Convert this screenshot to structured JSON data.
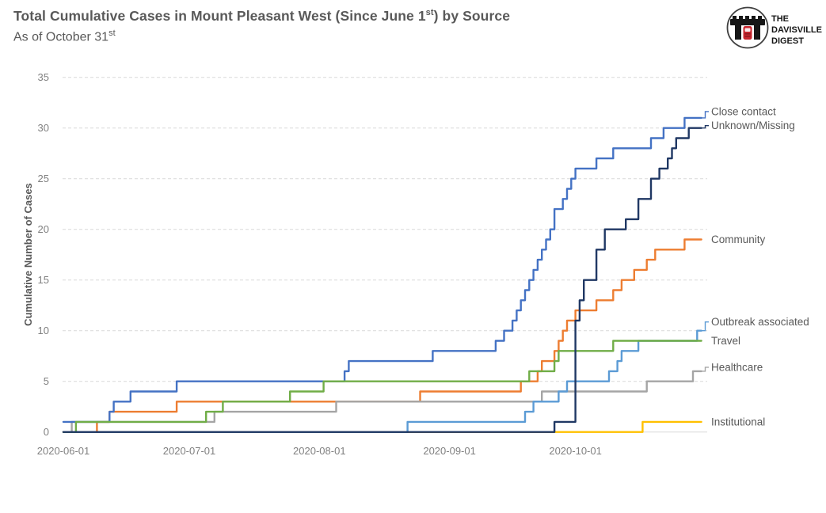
{
  "header": {
    "title_prefix": "Total Cumulative Cases in Mount Pleasant West (Since June 1",
    "title_sup": "st",
    "title_suffix": ") by Source",
    "subtitle_prefix": "As of October 31",
    "subtitle_sup": "st"
  },
  "logo": {
    "line1": "THE",
    "line2": "DAVISVILLE",
    "line3": "DIGEST"
  },
  "colors": {
    "title_text": "#595959",
    "axis_text": "#808080",
    "gridline": "#d9d9d9",
    "logo_red": "#c8262e",
    "logo_black": "#161616"
  },
  "chart_data": {
    "type": "line",
    "title": "Total Cumulative Cases in Mount Pleasant West (Since June 1st) by Source",
    "subtitle": "As of October 31st",
    "ylabel": "Cumulative Number of Cases",
    "xlabel": "",
    "ylim": [
      0,
      35
    ],
    "yticks": [
      0,
      5,
      10,
      15,
      20,
      25,
      30,
      35
    ],
    "x_tick_labels": [
      "2020-06-01",
      "2020-07-01",
      "2020-08-01",
      "2020-09-01",
      "2020-10-01"
    ],
    "x_tick_days": [
      0,
      30,
      61,
      92,
      122
    ],
    "total_days": 152,
    "grid": "horizontal-dashed",
    "legend_position": "right-end-labels",
    "series": [
      {
        "name": "Institutional",
        "color": "#ffc000",
        "final_value": 1,
        "label_dy": 0,
        "connector": false,
        "points": [
          [
            0,
            0
          ],
          [
            138,
            1
          ],
          [
            152,
            1
          ]
        ]
      },
      {
        "name": "Community",
        "color": "#ed7d31",
        "final_value": 19,
        "label_dy": 0,
        "connector": false,
        "points": [
          [
            0,
            0
          ],
          [
            8,
            1
          ],
          [
            11,
            2
          ],
          [
            27,
            3
          ],
          [
            85,
            4
          ],
          [
            109,
            5
          ],
          [
            113,
            6
          ],
          [
            114,
            7
          ],
          [
            117,
            8
          ],
          [
            118,
            9
          ],
          [
            119,
            10
          ],
          [
            120,
            11
          ],
          [
            122,
            12
          ],
          [
            127,
            13
          ],
          [
            131,
            14
          ],
          [
            133,
            15
          ],
          [
            136,
            16
          ],
          [
            139,
            17
          ],
          [
            141,
            18
          ],
          [
            148,
            19
          ],
          [
            152,
            19
          ]
        ]
      },
      {
        "name": "Healthcare",
        "color": "#a5a5a5",
        "final_value": 6,
        "label_dy": -5,
        "connector": true,
        "points": [
          [
            0,
            0
          ],
          [
            2,
            1
          ],
          [
            36,
            2
          ],
          [
            65,
            3
          ],
          [
            114,
            4
          ],
          [
            139,
            5
          ],
          [
            150,
            6
          ],
          [
            152,
            6
          ]
        ]
      },
      {
        "name": "Outbreak associated",
        "color": "#5b9bd5",
        "final_value": 10,
        "label_dy": -11,
        "connector": true,
        "points": [
          [
            0,
            0
          ],
          [
            82,
            1
          ],
          [
            110,
            2
          ],
          [
            112,
            3
          ],
          [
            118,
            4
          ],
          [
            120,
            5
          ],
          [
            130,
            6
          ],
          [
            132,
            7
          ],
          [
            133,
            8
          ],
          [
            137,
            9
          ],
          [
            151,
            10
          ],
          [
            152,
            10
          ]
        ]
      },
      {
        "name": "Close contact",
        "color": "#4472c4",
        "final_value": 31,
        "label_dy": -8,
        "connector": true,
        "points": [
          [
            0,
            1
          ],
          [
            11,
            2
          ],
          [
            12,
            3
          ],
          [
            16,
            4
          ],
          [
            27,
            5
          ],
          [
            67,
            6
          ],
          [
            68,
            7
          ],
          [
            88,
            8
          ],
          [
            103,
            9
          ],
          [
            105,
            10
          ],
          [
            107,
            11
          ],
          [
            108,
            12
          ],
          [
            109,
            13
          ],
          [
            110,
            14
          ],
          [
            111,
            15
          ],
          [
            112,
            16
          ],
          [
            113,
            17
          ],
          [
            114,
            18
          ],
          [
            115,
            19
          ],
          [
            116,
            20
          ],
          [
            117,
            22
          ],
          [
            119,
            23
          ],
          [
            120,
            24
          ],
          [
            121,
            25
          ],
          [
            122,
            26
          ],
          [
            127,
            27
          ],
          [
            131,
            28
          ],
          [
            140,
            29
          ],
          [
            143,
            30
          ],
          [
            148,
            31
          ],
          [
            152,
            31
          ]
        ]
      },
      {
        "name": "Travel",
        "color": "#70ad47",
        "final_value": 9,
        "label_dy": 0,
        "connector": false,
        "points": [
          [
            0,
            0
          ],
          [
            3,
            1
          ],
          [
            34,
            2
          ],
          [
            38,
            3
          ],
          [
            54,
            4
          ],
          [
            62,
            5
          ],
          [
            111,
            6
          ],
          [
            117,
            7
          ],
          [
            118,
            8
          ],
          [
            131,
            9
          ],
          [
            152,
            9
          ]
        ]
      },
      {
        "name": "Unknown/Missing",
        "color": "#203864",
        "final_value": 30,
        "label_dy": -3,
        "connector": true,
        "points": [
          [
            0,
            0
          ],
          [
            117,
            1
          ],
          [
            122,
            11
          ],
          [
            123,
            13
          ],
          [
            124,
            15
          ],
          [
            127,
            18
          ],
          [
            129,
            20
          ],
          [
            134,
            21
          ],
          [
            137,
            23
          ],
          [
            140,
            25
          ],
          [
            142,
            26
          ],
          [
            144,
            27
          ],
          [
            145,
            28
          ],
          [
            146,
            29
          ],
          [
            149,
            30
          ],
          [
            152,
            30
          ]
        ]
      }
    ]
  }
}
